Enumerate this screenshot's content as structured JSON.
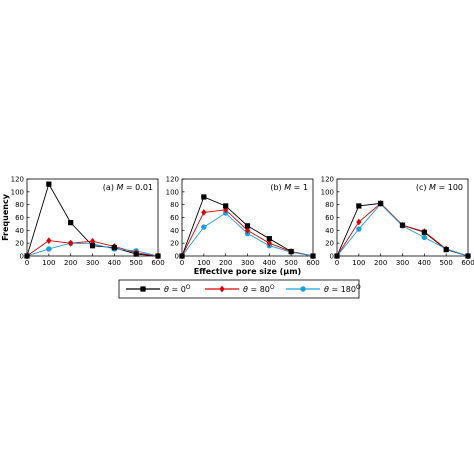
{
  "legend_symbol": "θ",
  "legend_degree": "O",
  "chart_data": [
    {
      "type": "line",
      "panel_prefix": "(a)",
      "param_name": "M",
      "param_value": "= 0.01",
      "xlabel": "",
      "ylabel": "Frequency",
      "x": [
        0,
        100,
        200,
        300,
        400,
        500,
        600
      ],
      "xticks": [
        "0",
        "100",
        "200",
        "300",
        "400",
        "500",
        "600"
      ],
      "yticks": [
        "0",
        "20",
        "40",
        "60",
        "80",
        "100",
        "120"
      ],
      "xlim": [
        0,
        600
      ],
      "ylim": [
        0,
        120
      ],
      "grid": false,
      "series": [
        {
          "name": "θ = 0",
          "angle": "0",
          "color": "#000000",
          "marker": "square",
          "values": [
            0,
            112,
            52,
            16,
            13,
            3,
            0
          ]
        },
        {
          "name": "θ = 80",
          "angle": "80",
          "color": "#e00000",
          "marker": "diamond",
          "values": [
            0,
            24,
            20,
            23,
            15,
            5,
            0
          ]
        },
        {
          "name": "θ = 180",
          "angle": "180",
          "color": "#1aa0dc",
          "marker": "circle",
          "values": [
            0,
            11,
            20,
            19,
            11,
            8,
            0
          ]
        }
      ]
    },
    {
      "type": "line",
      "panel_prefix": "(b)",
      "param_name": "M",
      "param_value": "= 1",
      "xlabel": "Effective pore size (μm)",
      "ylabel": "",
      "x": [
        0,
        100,
        200,
        300,
        400,
        500,
        600
      ],
      "xticks": [
        "0",
        "100",
        "200",
        "300",
        "400",
        "500",
        "600"
      ],
      "yticks": [
        "0",
        "20",
        "40",
        "60",
        "80",
        "100",
        "120"
      ],
      "xlim": [
        0,
        600
      ],
      "ylim": [
        0,
        120
      ],
      "grid": false,
      "series": [
        {
          "name": "θ = 0",
          "angle": "0",
          "color": "#000000",
          "marker": "square",
          "values": [
            0,
            92,
            78,
            47,
            27,
            7,
            0
          ]
        },
        {
          "name": "θ = 80",
          "angle": "80",
          "color": "#e00000",
          "marker": "diamond",
          "values": [
            0,
            68,
            72,
            40,
            20,
            7,
            0
          ]
        },
        {
          "name": "θ = 180",
          "angle": "180",
          "color": "#1aa0dc",
          "marker": "circle",
          "values": [
            0,
            45,
            67,
            35,
            16,
            6,
            0
          ]
        }
      ]
    },
    {
      "type": "line",
      "panel_prefix": "(c)",
      "param_name": "M",
      "param_value": "= 100",
      "xlabel": "",
      "ylabel": "",
      "x": [
        0,
        100,
        200,
        300,
        400,
        500,
        600
      ],
      "xticks": [
        "0",
        "100",
        "200",
        "300",
        "400",
        "500",
        "600"
      ],
      "yticks": [
        "0",
        "20",
        "40",
        "60",
        "80",
        "100",
        "120"
      ],
      "xlim": [
        0,
        600
      ],
      "ylim": [
        0,
        120
      ],
      "grid": false,
      "series": [
        {
          "name": "θ = 0",
          "angle": "0",
          "color": "#000000",
          "marker": "square",
          "values": [
            0,
            78,
            82,
            48,
            37,
            10,
            0
          ]
        },
        {
          "name": "θ = 80",
          "angle": "80",
          "color": "#e00000",
          "marker": "diamond",
          "values": [
            0,
            53,
            82,
            48,
            38,
            11,
            0
          ]
        },
        {
          "name": "θ = 180",
          "angle": "180",
          "color": "#1aa0dc",
          "marker": "circle",
          "values": [
            0,
            42,
            81,
            47,
            29,
            11,
            0
          ]
        }
      ]
    }
  ]
}
